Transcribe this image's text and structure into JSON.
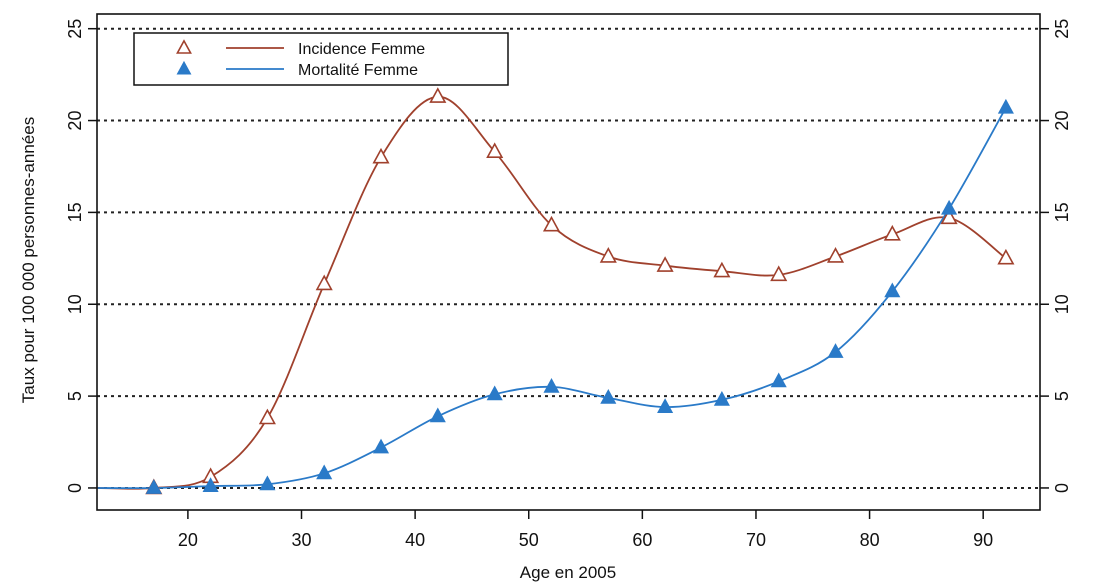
{
  "chart_data": {
    "type": "line",
    "title": "",
    "xlabel": "Age en 2005",
    "ylabel": "Taux pour 100 000 personnes-années",
    "xlim": [
      12,
      95
    ],
    "ylim": [
      -1.2,
      25.8
    ],
    "x_ticks": [
      20,
      30,
      40,
      50,
      60,
      70,
      80,
      90
    ],
    "y_ticks": [
      0,
      5,
      10,
      15,
      20,
      25
    ],
    "grid": "horizontal dotted at each y tick",
    "legend_position": "top-left",
    "x": [
      17,
      22,
      27,
      32,
      37,
      42,
      47,
      52,
      57,
      62,
      67,
      72,
      77,
      82,
      87,
      92
    ],
    "series": [
      {
        "name": "Incidence Femme",
        "color": "#a0412d",
        "marker": "open-triangle",
        "values": [
          0.0,
          0.6,
          3.8,
          11.1,
          18.0,
          21.3,
          18.3,
          14.3,
          12.6,
          12.1,
          11.8,
          11.6,
          12.6,
          13.8,
          14.7,
          12.5
        ]
      },
      {
        "name": "Mortalité Femme",
        "color": "#2a7ac8",
        "marker": "filled-triangle",
        "values": [
          0.0,
          0.1,
          0.2,
          0.8,
          2.2,
          3.9,
          5.1,
          5.5,
          4.9,
          4.4,
          4.8,
          5.8,
          7.4,
          10.7,
          15.2,
          20.7
        ]
      }
    ]
  }
}
